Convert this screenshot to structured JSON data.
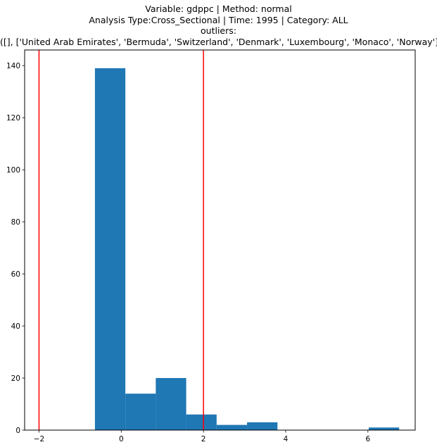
{
  "chart_data": {
    "type": "bar",
    "title_lines": [
      "Variable: gdppc | Method: normal",
      "Analysis Type:Cross_Sectional | Time: 1995 | Category: ALL",
      "outliers:",
      "([], ['United Arab Emirates', 'Bermuda', 'Switzerland', 'Denmark', 'Luxembourg', 'Monaco', 'Norway'])"
    ],
    "xlabel": "",
    "ylabel": "",
    "xlim": [
      -2.35,
      7.15
    ],
    "ylim": [
      0,
      146
    ],
    "x_ticks": [
      -2,
      0,
      2,
      4,
      6
    ],
    "x_tick_labels": [
      "−2",
      "0",
      "2",
      "4",
      "6"
    ],
    "y_ticks": [
      0,
      20,
      40,
      60,
      80,
      100,
      120,
      140
    ],
    "bins": [
      {
        "left": -0.64,
        "right": 0.1,
        "count": 139
      },
      {
        "left": 0.1,
        "right": 0.84,
        "count": 14
      },
      {
        "left": 0.84,
        "right": 1.58,
        "count": 20
      },
      {
        "left": 1.58,
        "right": 2.32,
        "count": 6
      },
      {
        "left": 2.32,
        "right": 3.06,
        "count": 2
      },
      {
        "left": 3.06,
        "right": 3.8,
        "count": 3
      },
      {
        "left": 3.8,
        "right": 4.54,
        "count": 0
      },
      {
        "left": 4.54,
        "right": 5.28,
        "count": 0
      },
      {
        "left": 5.28,
        "right": 6.02,
        "count": 0
      },
      {
        "left": 6.02,
        "right": 6.76,
        "count": 1
      }
    ],
    "threshold_lines": [
      -2,
      2
    ],
    "bar_color": "#1f77b4",
    "threshold_color": "#ff0000",
    "grid": false,
    "legend": "none"
  }
}
